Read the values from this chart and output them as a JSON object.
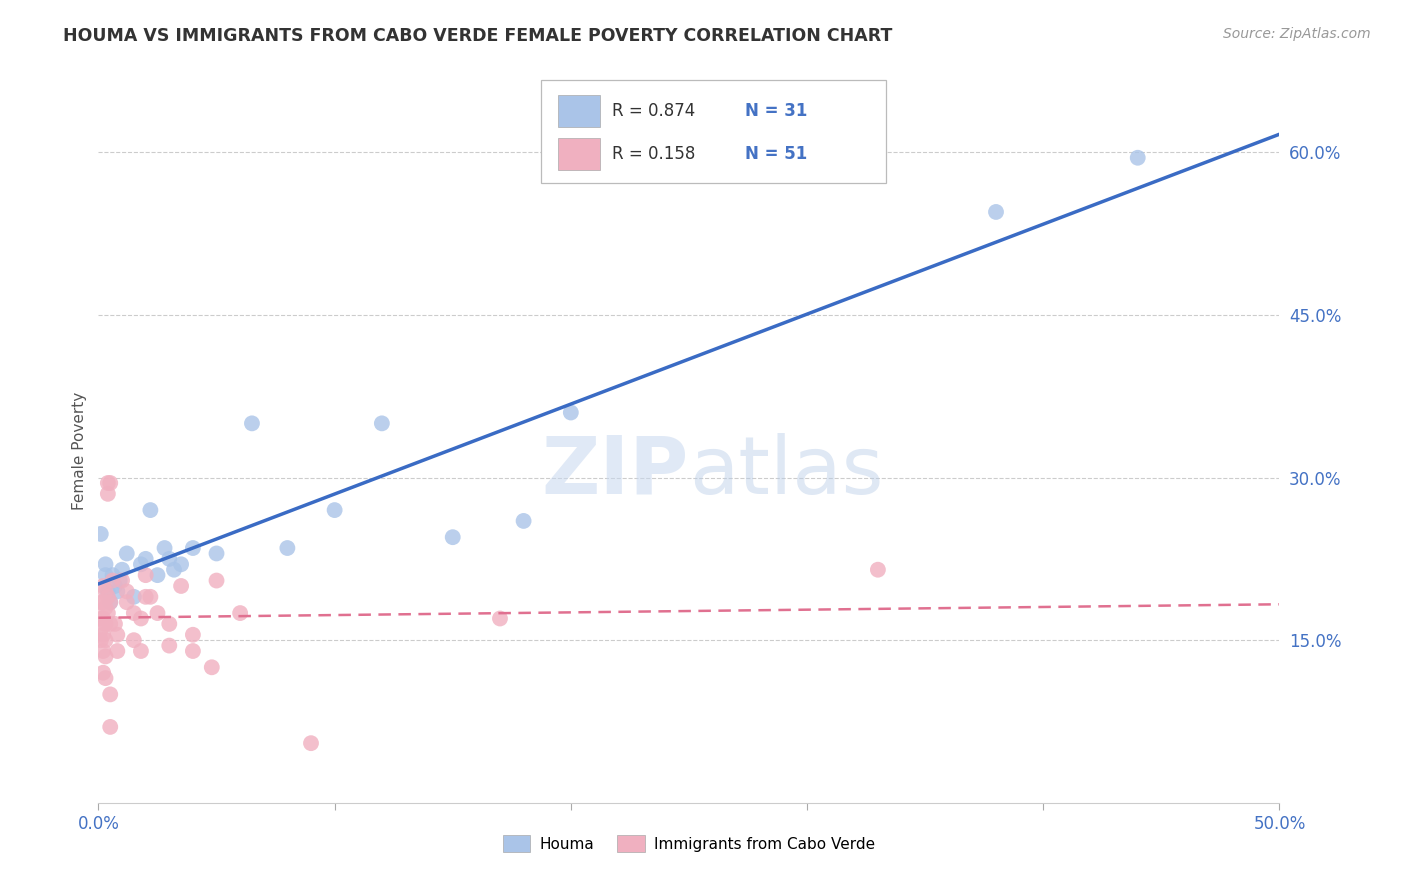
{
  "title": "HOUMA VS IMMIGRANTS FROM CABO VERDE FEMALE POVERTY CORRELATION CHART",
  "source": "Source: ZipAtlas.com",
  "ylabel_label": "Female Poverty",
  "x_min": 0.0,
  "x_max": 0.5,
  "y_min": 0.0,
  "y_max": 0.65,
  "x_ticks": [
    0.0,
    0.1,
    0.2,
    0.3,
    0.4,
    0.5
  ],
  "y_ticks": [
    0.15,
    0.3,
    0.45,
    0.6
  ],
  "y_tick_labels": [
    "15.0%",
    "30.0%",
    "45.0%",
    "60.0%"
  ],
  "houma_color": "#aac4e8",
  "cabo_color": "#f0b0c0",
  "houma_line_color": "#3a6bc4",
  "cabo_line_color": "#e07090",
  "tick_color": "#4472c4",
  "watermark": "ZIPatlas",
  "houma_R": 0.874,
  "houma_N": 31,
  "cabo_R": 0.158,
  "cabo_N": 51,
  "houma_scatter": [
    [
      0.001,
      0.248
    ],
    [
      0.003,
      0.22
    ],
    [
      0.003,
      0.21
    ],
    [
      0.004,
      0.195
    ],
    [
      0.005,
      0.185
    ],
    [
      0.006,
      0.21
    ],
    [
      0.007,
      0.2
    ],
    [
      0.008,
      0.195
    ],
    [
      0.009,
      0.205
    ],
    [
      0.01,
      0.215
    ],
    [
      0.012,
      0.23
    ],
    [
      0.015,
      0.19
    ],
    [
      0.018,
      0.22
    ],
    [
      0.02,
      0.225
    ],
    [
      0.022,
      0.27
    ],
    [
      0.025,
      0.21
    ],
    [
      0.028,
      0.235
    ],
    [
      0.03,
      0.225
    ],
    [
      0.032,
      0.215
    ],
    [
      0.035,
      0.22
    ],
    [
      0.04,
      0.235
    ],
    [
      0.05,
      0.23
    ],
    [
      0.065,
      0.35
    ],
    [
      0.08,
      0.235
    ],
    [
      0.1,
      0.27
    ],
    [
      0.12,
      0.35
    ],
    [
      0.15,
      0.245
    ],
    [
      0.18,
      0.26
    ],
    [
      0.2,
      0.36
    ],
    [
      0.38,
      0.545
    ],
    [
      0.44,
      0.595
    ]
  ],
  "cabo_scatter": [
    [
      0.001,
      0.185
    ],
    [
      0.001,
      0.17
    ],
    [
      0.001,
      0.16
    ],
    [
      0.001,
      0.15
    ],
    [
      0.002,
      0.2
    ],
    [
      0.002,
      0.185
    ],
    [
      0.002,
      0.17
    ],
    [
      0.002,
      0.155
    ],
    [
      0.002,
      0.14
    ],
    [
      0.002,
      0.12
    ],
    [
      0.003,
      0.195
    ],
    [
      0.003,
      0.18
    ],
    [
      0.003,
      0.165
    ],
    [
      0.003,
      0.15
    ],
    [
      0.003,
      0.135
    ],
    [
      0.003,
      0.115
    ],
    [
      0.004,
      0.295
    ],
    [
      0.004,
      0.285
    ],
    [
      0.004,
      0.19
    ],
    [
      0.004,
      0.175
    ],
    [
      0.005,
      0.295
    ],
    [
      0.005,
      0.185
    ],
    [
      0.005,
      0.165
    ],
    [
      0.005,
      0.1
    ],
    [
      0.005,
      0.07
    ],
    [
      0.006,
      0.205
    ],
    [
      0.007,
      0.165
    ],
    [
      0.008,
      0.155
    ],
    [
      0.008,
      0.14
    ],
    [
      0.01,
      0.205
    ],
    [
      0.012,
      0.195
    ],
    [
      0.012,
      0.185
    ],
    [
      0.015,
      0.175
    ],
    [
      0.015,
      0.15
    ],
    [
      0.018,
      0.17
    ],
    [
      0.018,
      0.14
    ],
    [
      0.02,
      0.21
    ],
    [
      0.02,
      0.19
    ],
    [
      0.022,
      0.19
    ],
    [
      0.025,
      0.175
    ],
    [
      0.03,
      0.165
    ],
    [
      0.03,
      0.145
    ],
    [
      0.035,
      0.2
    ],
    [
      0.04,
      0.155
    ],
    [
      0.04,
      0.14
    ],
    [
      0.048,
      0.125
    ],
    [
      0.05,
      0.205
    ],
    [
      0.06,
      0.175
    ],
    [
      0.09,
      0.055
    ],
    [
      0.17,
      0.17
    ],
    [
      0.33,
      0.215
    ]
  ]
}
